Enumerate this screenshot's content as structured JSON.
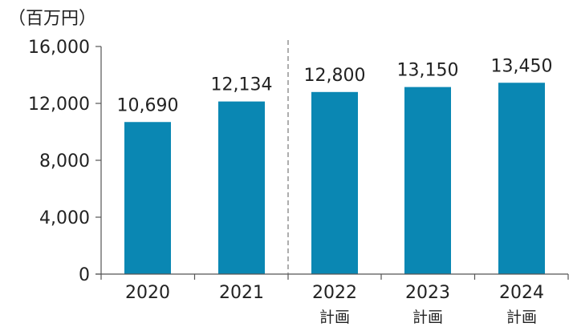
{
  "chart_data": {
    "type": "bar",
    "unit_label": "（百万円）",
    "categories": [
      "2020",
      "2021",
      "2022",
      "2023",
      "2024"
    ],
    "category_sublabels": [
      "",
      "",
      "計画",
      "計画",
      "計画"
    ],
    "values": [
      10690,
      12134,
      12800,
      13150,
      13450
    ],
    "value_labels": [
      "10,690",
      "12,134",
      "12,800",
      "13,150",
      "13,450"
    ],
    "ylim": [
      0,
      16000
    ],
    "yticks": [
      0,
      4000,
      8000,
      12000,
      16000
    ],
    "ytick_labels": [
      "0",
      "4,000",
      "8,000",
      "12,000",
      "16,000"
    ],
    "grid": false,
    "legend": "none",
    "bar_color": "#0a87b3",
    "divider": {
      "style": "dashed",
      "between_categories": [
        "2021",
        "2022"
      ]
    }
  }
}
